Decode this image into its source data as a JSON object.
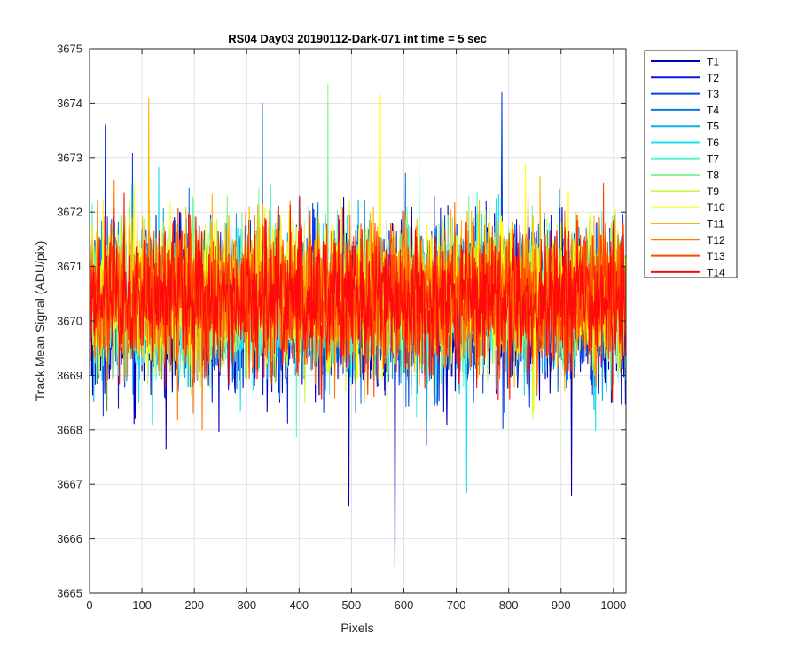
{
  "chart_data": {
    "type": "line",
    "title": "RS04 Day03 20190112-Dark-071 int time = 5 sec",
    "xlabel": "Pixels",
    "ylabel": "Track Mean Signal (ADU/pix)",
    "xlim": [
      0,
      1024
    ],
    "ylim": [
      3665,
      3675
    ],
    "xticks": [
      0,
      100,
      200,
      300,
      400,
      500,
      600,
      700,
      800,
      900,
      1000
    ],
    "yticks": [
      3665,
      3666,
      3667,
      3668,
      3669,
      3670,
      3671,
      3672,
      3673,
      3674,
      3675
    ],
    "grid": true,
    "legend_position": "outside-top-right",
    "x_points": 1024,
    "series": [
      {
        "name": "T1",
        "color": "#0000b8",
        "mean": 3670.15,
        "spread": 0.95,
        "noted_extremes": [
          {
            "x": 583,
            "y": 3665.5
          },
          {
            "x": 495,
            "y": 3666.6
          },
          {
            "x": 920,
            "y": 3666.8
          }
        ]
      },
      {
        "name": "T2",
        "color": "#0a1ed7",
        "mean": 3670.2,
        "spread": 0.9,
        "noted_extremes": [
          {
            "x": 30,
            "y": 3673.6
          }
        ]
      },
      {
        "name": "T3",
        "color": "#0a44e6",
        "mean": 3670.25,
        "spread": 0.85,
        "noted_extremes": [
          {
            "x": 787,
            "y": 3674.2
          }
        ]
      },
      {
        "name": "T4",
        "color": "#0a7ae6",
        "mean": 3670.3,
        "spread": 0.85,
        "noted_extremes": [
          {
            "x": 330,
            "y": 3674.0
          }
        ]
      },
      {
        "name": "T5",
        "color": "#0aafe6",
        "mean": 3670.3,
        "spread": 0.85,
        "noted_extremes": []
      },
      {
        "name": "T6",
        "color": "#1ee1f0",
        "mean": 3670.35,
        "spread": 0.85,
        "noted_extremes": [
          {
            "x": 720,
            "y": 3666.85
          }
        ]
      },
      {
        "name": "T7",
        "color": "#5af5d2",
        "mean": 3670.35,
        "spread": 0.85,
        "noted_extremes": []
      },
      {
        "name": "T8",
        "color": "#82f596",
        "mean": 3670.4,
        "spread": 0.85,
        "noted_extremes": [
          {
            "x": 455,
            "y": 3674.35
          }
        ]
      },
      {
        "name": "T9",
        "color": "#c8fa46",
        "mean": 3670.45,
        "spread": 0.85,
        "noted_extremes": []
      },
      {
        "name": "T10",
        "color": "#ffff00",
        "mean": 3670.5,
        "spread": 0.85,
        "noted_extremes": [
          {
            "x": 555,
            "y": 3674.15
          }
        ]
      },
      {
        "name": "T11",
        "color": "#ffb400",
        "mean": 3670.5,
        "spread": 0.85,
        "noted_extremes": [
          {
            "x": 113,
            "y": 3674.1
          }
        ]
      },
      {
        "name": "T12",
        "color": "#ff7800",
        "mean": 3670.45,
        "spread": 0.85,
        "noted_extremes": []
      },
      {
        "name": "T13",
        "color": "#ff4600",
        "mean": 3670.4,
        "spread": 0.85,
        "noted_extremes": []
      },
      {
        "name": "T14",
        "color": "#ff0a0a",
        "mean": 3670.4,
        "spread": 0.85,
        "noted_extremes": []
      }
    ]
  }
}
